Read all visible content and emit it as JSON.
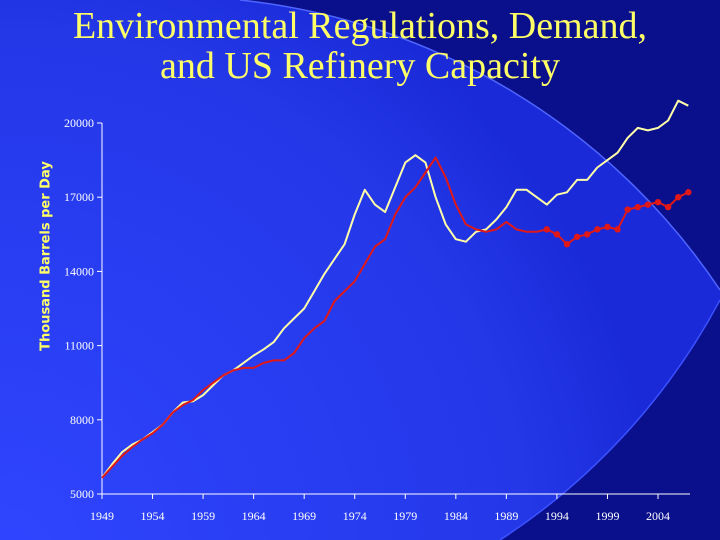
{
  "title_lines": [
    "Environmental Regulations, Demand,",
    "and US Refinery Capacity"
  ],
  "colors": {
    "background_dark": "#0a0f8c",
    "background_light": "#2a3cf0",
    "title": "#ffff66",
    "axis_text": "#ffffff",
    "capacity_line": "#ffffa8",
    "demand_line": "#e01818"
  },
  "chart_data": {
    "type": "line",
    "title": "Environmental Regulations, Demand, and US Refinery Capacity",
    "xlabel": "",
    "ylabel": "Thousand Barrels per Day",
    "xlim": [
      1949,
      2006
    ],
    "ylim": [
      5000,
      20000
    ],
    "x_ticks": [
      1949,
      1954,
      1959,
      1964,
      1969,
      1974,
      1979,
      1984,
      1989,
      1994,
      1999,
      2004
    ],
    "y_ticks": [
      5000,
      8000,
      11000,
      14000,
      17000,
      20000
    ],
    "grid": false,
    "legend": "none",
    "series": [
      {
        "color": "#ffffa8",
        "marker": "none",
        "points": [
          [
            1949,
            5650
          ],
          [
            1950,
            6200
          ],
          [
            1951,
            6700
          ],
          [
            1952,
            7000
          ],
          [
            1953,
            7200
          ],
          [
            1954,
            7500
          ],
          [
            1955,
            7800
          ],
          [
            1956,
            8300
          ],
          [
            1957,
            8700
          ],
          [
            1958,
            8750
          ],
          [
            1959,
            9000
          ],
          [
            1960,
            9400
          ],
          [
            1961,
            9800
          ],
          [
            1962,
            10000
          ],
          [
            1963,
            10300
          ],
          [
            1964,
            10600
          ],
          [
            1965,
            10850
          ],
          [
            1966,
            11150
          ],
          [
            1967,
            11700
          ],
          [
            1968,
            12100
          ],
          [
            1969,
            12500
          ],
          [
            1970,
            13200
          ],
          [
            1971,
            13900
          ],
          [
            1972,
            14500
          ],
          [
            1973,
            15100
          ],
          [
            1974,
            16300
          ],
          [
            1975,
            17300
          ],
          [
            1976,
            16700
          ],
          [
            1977,
            16400
          ],
          [
            1978,
            17400
          ],
          [
            1979,
            18400
          ],
          [
            1980,
            18700
          ],
          [
            1981,
            18400
          ],
          [
            1982,
            17000
          ],
          [
            1983,
            15900
          ],
          [
            1984,
            15300
          ],
          [
            1985,
            15200
          ],
          [
            1986,
            15600
          ],
          [
            1987,
            15700
          ],
          [
            1988,
            16100
          ],
          [
            1989,
            16600
          ],
          [
            1990,
            17300
          ],
          [
            1991,
            17300
          ],
          [
            1992,
            17000
          ],
          [
            1993,
            16700
          ],
          [
            1994,
            17100
          ],
          [
            1995,
            17200
          ],
          [
            1996,
            17700
          ],
          [
            1997,
            17700
          ],
          [
            1998,
            18200
          ],
          [
            1999,
            18500
          ],
          [
            2000,
            18800
          ],
          [
            2001,
            19400
          ],
          [
            2002,
            19800
          ],
          [
            2003,
            19700
          ],
          [
            2004,
            19800
          ],
          [
            2005,
            20100
          ],
          [
            2006,
            20900
          ],
          [
            2007,
            20700
          ]
        ]
      },
      {
        "color": "#e01818",
        "marker": "none",
        "points": [
          [
            1949,
            5650
          ],
          [
            1950,
            6100
          ],
          [
            1951,
            6550
          ],
          [
            1952,
            6900
          ],
          [
            1953,
            7200
          ],
          [
            1954,
            7450
          ],
          [
            1955,
            7800
          ],
          [
            1956,
            8300
          ],
          [
            1957,
            8600
          ],
          [
            1958,
            8800
          ],
          [
            1959,
            9200
          ],
          [
            1960,
            9500
          ],
          [
            1961,
            9800
          ],
          [
            1962,
            10000
          ],
          [
            1963,
            10100
          ],
          [
            1964,
            10100
          ],
          [
            1965,
            10300
          ],
          [
            1966,
            10400
          ],
          [
            1967,
            10400
          ],
          [
            1968,
            10700
          ],
          [
            1969,
            11300
          ],
          [
            1970,
            11700
          ],
          [
            1971,
            12000
          ],
          [
            1972,
            12800
          ],
          [
            1973,
            13200
          ],
          [
            1974,
            13600
          ],
          [
            1975,
            14300
          ],
          [
            1976,
            15000
          ],
          [
            1977,
            15300
          ],
          [
            1978,
            16300
          ],
          [
            1979,
            17000
          ],
          [
            1980,
            17400
          ],
          [
            1981,
            18000
          ],
          [
            1982,
            18600
          ],
          [
            1983,
            17800
          ],
          [
            1984,
            16700
          ],
          [
            1985,
            15900
          ],
          [
            1986,
            15700
          ],
          [
            1987,
            15600
          ],
          [
            1988,
            15700
          ],
          [
            1989,
            16000
          ],
          [
            1990,
            15700
          ],
          [
            1991,
            15600
          ],
          [
            1992,
            15600
          ],
          [
            1993,
            15700
          ]
        ]
      },
      {
        "color": "#e01818",
        "marker": "circle",
        "points": [
          [
            1993,
            15700
          ],
          [
            1994,
            15500
          ],
          [
            1995,
            15100
          ],
          [
            1996,
            15400
          ],
          [
            1997,
            15500
          ],
          [
            1998,
            15700
          ],
          [
            1999,
            15800
          ],
          [
            2000,
            15700
          ],
          [
            2001,
            16500
          ],
          [
            2002,
            16600
          ],
          [
            2003,
            16700
          ],
          [
            2004,
            16800
          ],
          [
            2005,
            16600
          ],
          [
            2006,
            17000
          ],
          [
            2007,
            17200
          ]
        ]
      }
    ]
  }
}
